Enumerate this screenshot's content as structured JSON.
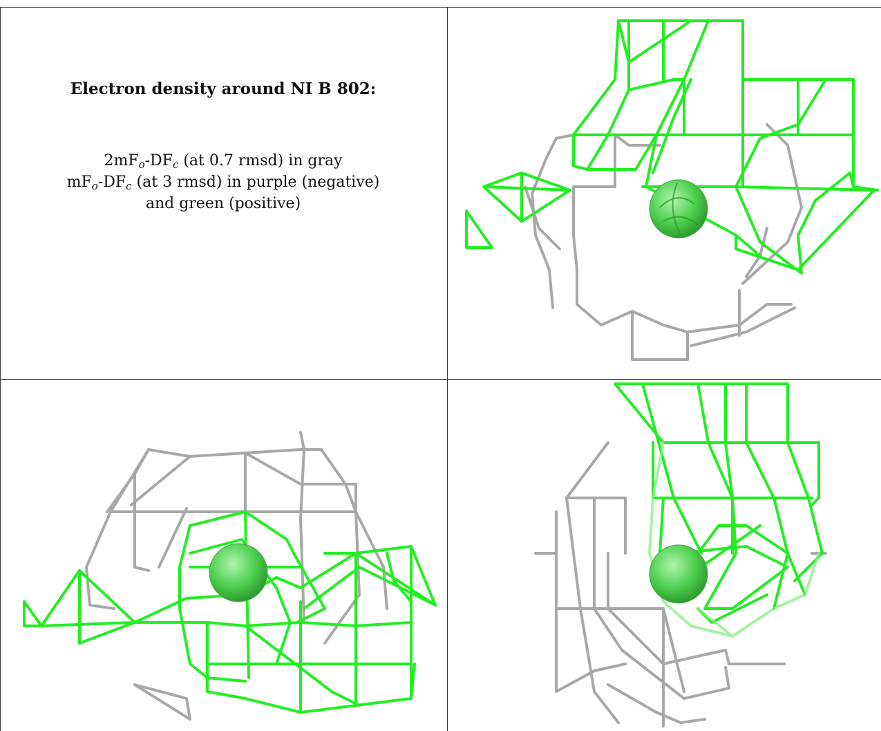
{
  "caption": {
    "title": "Electron density around NI B 802:",
    "line1_prefix": "2mF",
    "line1_sub_o": "o",
    "line1_mid": "-DF",
    "line1_sub_c": "c",
    "line1_suffix": " (at 0.7 rmsd) in gray",
    "line2_prefix": "mF",
    "line2_sub_o": "o",
    "line2_mid": "-DF",
    "line2_sub_c": "c",
    "line2_suffix": " (at 3 rmsd) in purple (negative)",
    "line3": "and green (positive)"
  },
  "colors": {
    "positive_density": "#22ee22",
    "map_2fofc": "#9a9a9a",
    "atom": "#44cc44",
    "border": "#3a3a3a"
  }
}
